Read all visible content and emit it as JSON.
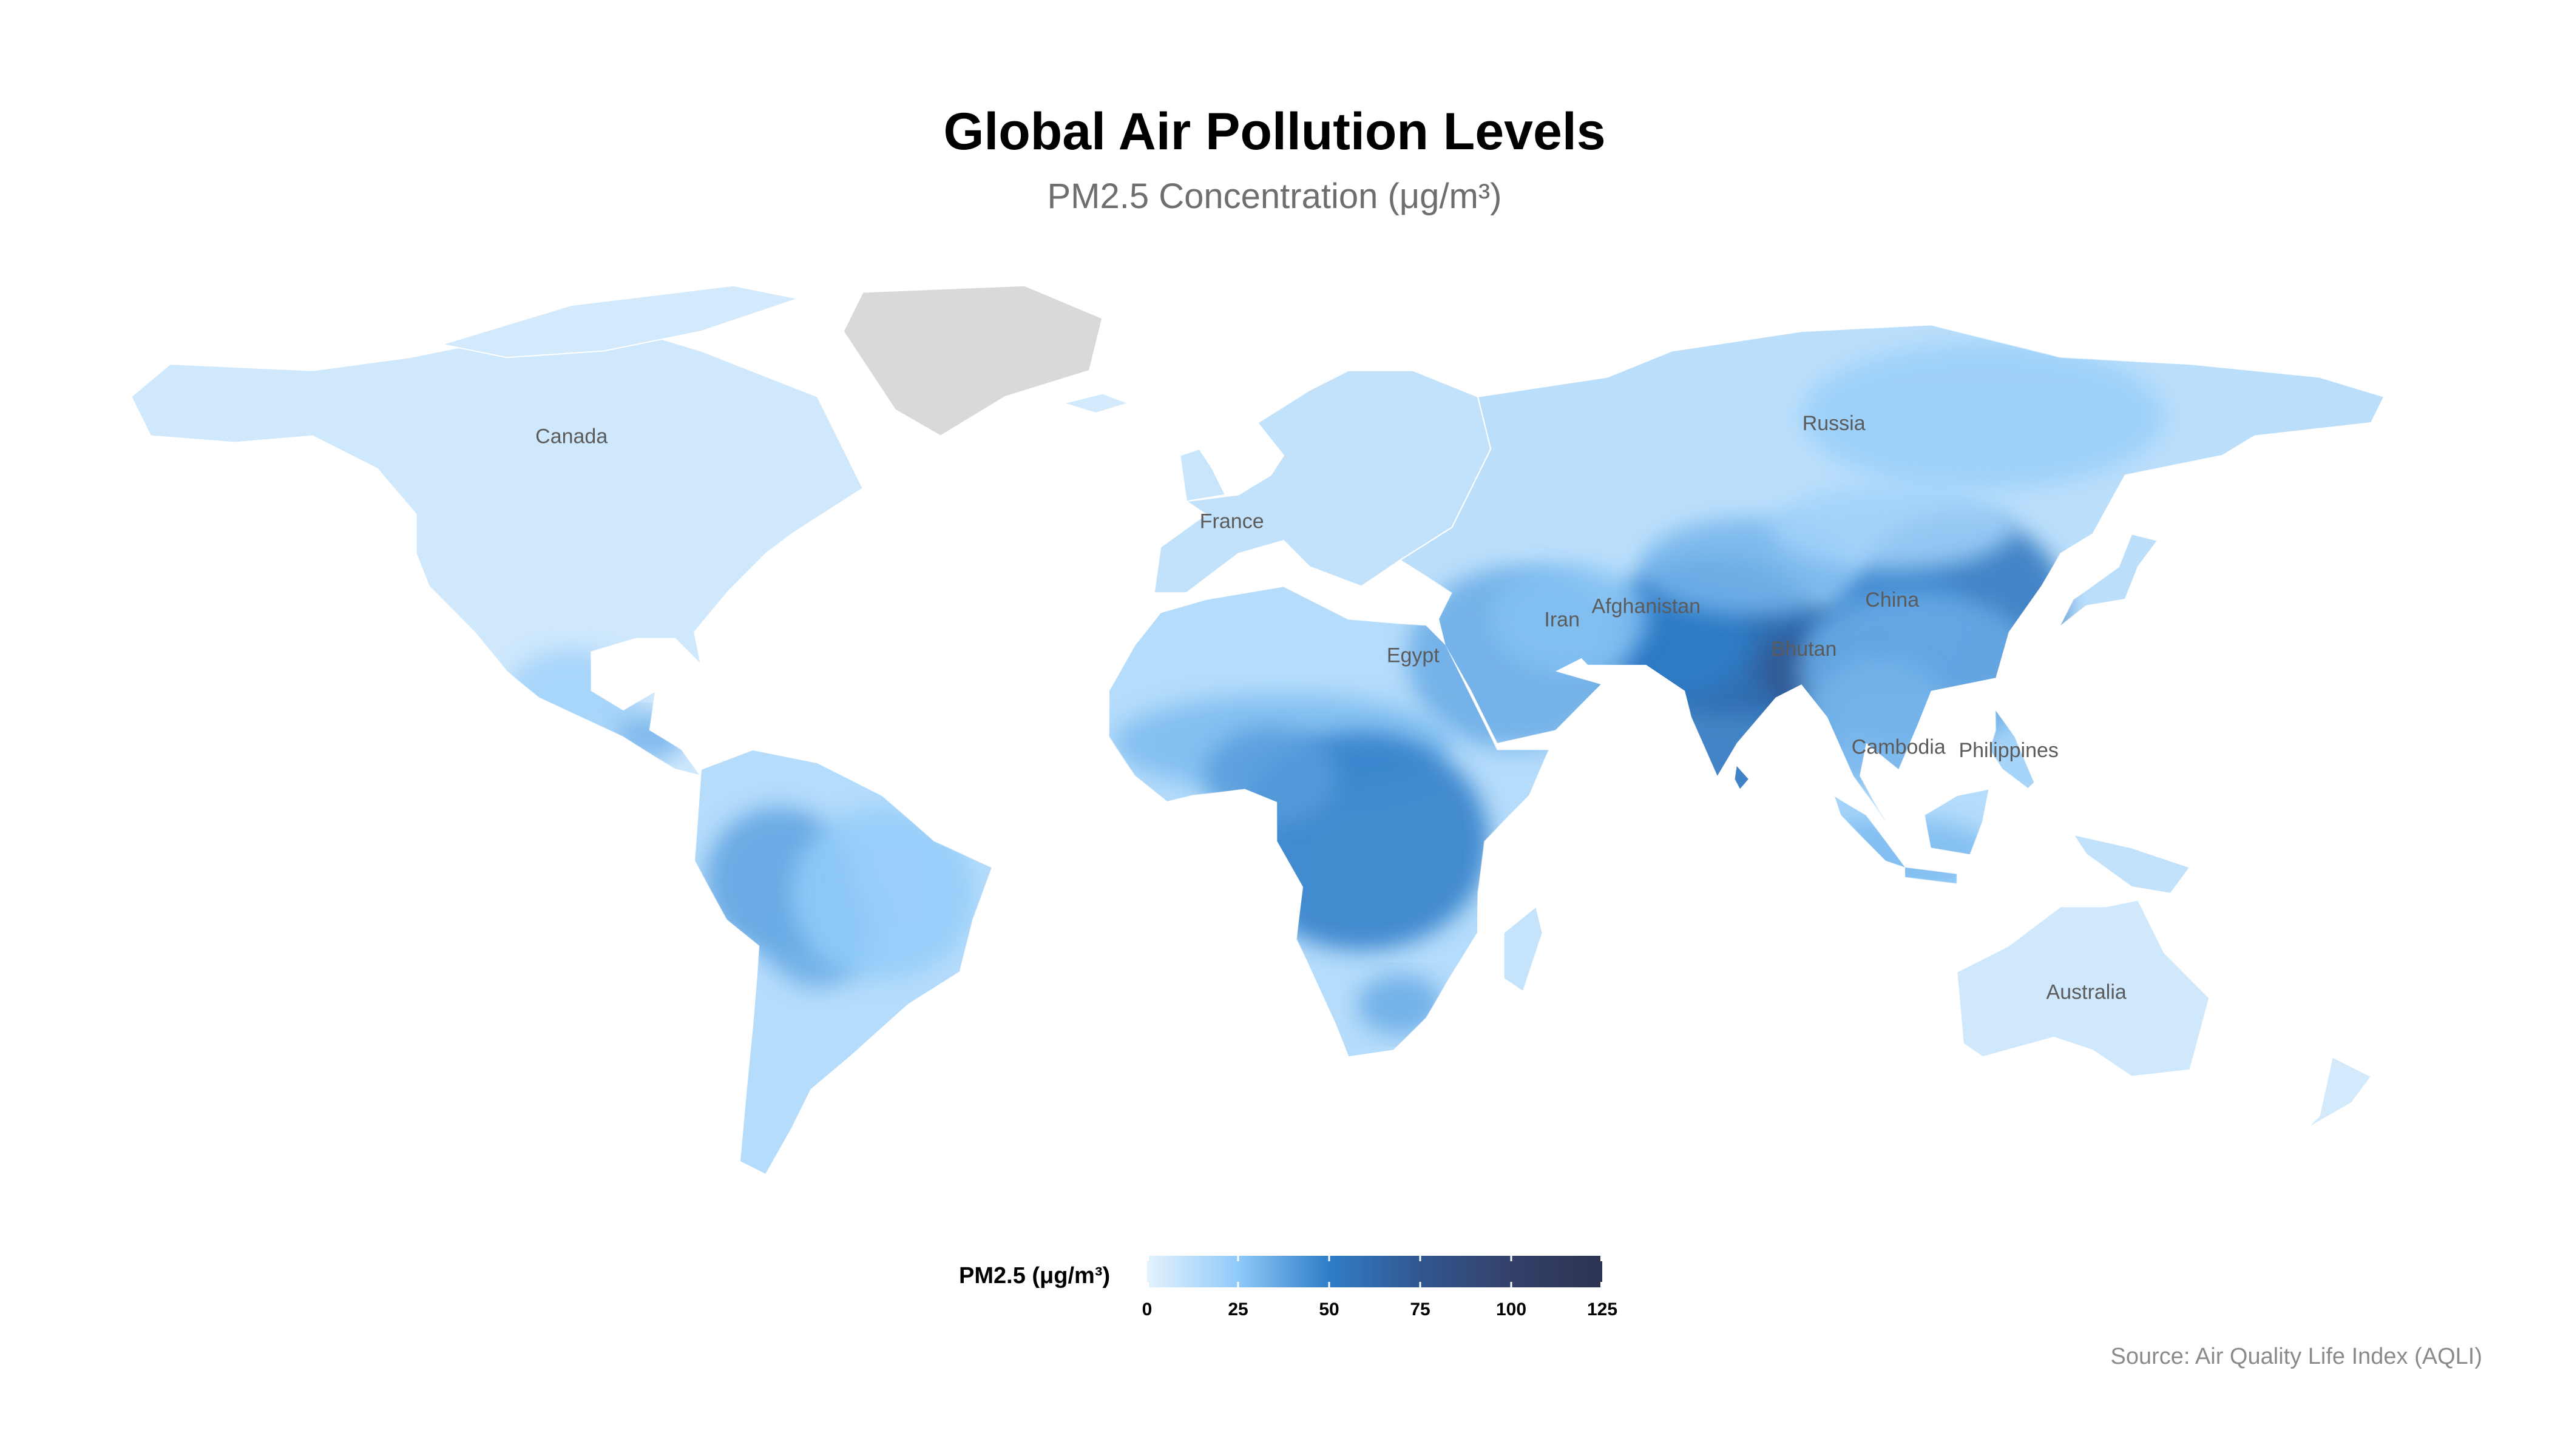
{
  "title": "Global Air Pollution Levels",
  "subtitle": "PM2.5 Concentration (μg/m³)",
  "source": "Source: Air Quality Life Index (AQLI)",
  "legend": {
    "title": "PM2.5 (μg/m³)",
    "min": 0,
    "max": 125,
    "ticks": [
      "0",
      "25",
      "50",
      "75",
      "100",
      "125"
    ],
    "tick_values": [
      0,
      25,
      50,
      75,
      100,
      125
    ],
    "colors": [
      "#e3f2fd",
      "#90caf9",
      "#2f7dc8",
      "#31578f",
      "#34406a",
      "#2d3352"
    ]
  },
  "colors": {
    "no_data": "#d9d9d9",
    "ocean": "#ffffff",
    "label_text": "#5b5b5b"
  },
  "chart_data": {
    "type": "choropleth",
    "variable": "PM2.5 Concentration (μg/m³)",
    "scale_range": [
      0,
      125
    ],
    "regions": [
      {
        "name": "Canada",
        "label": "Canada",
        "lon": -100,
        "lat": 60,
        "pm25": 6
      },
      {
        "name": "Russia",
        "label": "Russia",
        "lon": 95,
        "lat": 62,
        "pm25": 9
      },
      {
        "name": "France",
        "label": "France",
        "lon": 2,
        "lat": 47,
        "pm25": 10
      },
      {
        "name": "China",
        "label": "China",
        "lon": 104,
        "lat": 35,
        "pm25": 40
      },
      {
        "name": "Iran",
        "label": "Iran",
        "lon": 53,
        "lat": 32,
        "pm25": 30
      },
      {
        "name": "Afghanistan",
        "label": "Afghanistan",
        "lon": 66,
        "lat": 34,
        "pm25": 30
      },
      {
        "name": "Bhutan",
        "label": "Bhutan",
        "lon": 90.4,
        "lat": 27.5,
        "pm25": 40
      },
      {
        "name": "Egypt",
        "label": "Egypt",
        "lon": 30,
        "lat": 26.5,
        "pm25": 20
      },
      {
        "name": "Cambodia",
        "label": "Cambodia",
        "lon": 105,
        "lat": 12.5,
        "pm25": 25
      },
      {
        "name": "Philippines",
        "label": "Philippines",
        "lon": 122,
        "lat": 12,
        "pm25": 20
      },
      {
        "name": "Australia",
        "label": "Australia",
        "lon": 134,
        "lat": -25,
        "pm25": 6
      },
      {
        "name": "Greenland",
        "label": "",
        "lon": -40,
        "lat": 72,
        "pm25": null
      }
    ]
  }
}
